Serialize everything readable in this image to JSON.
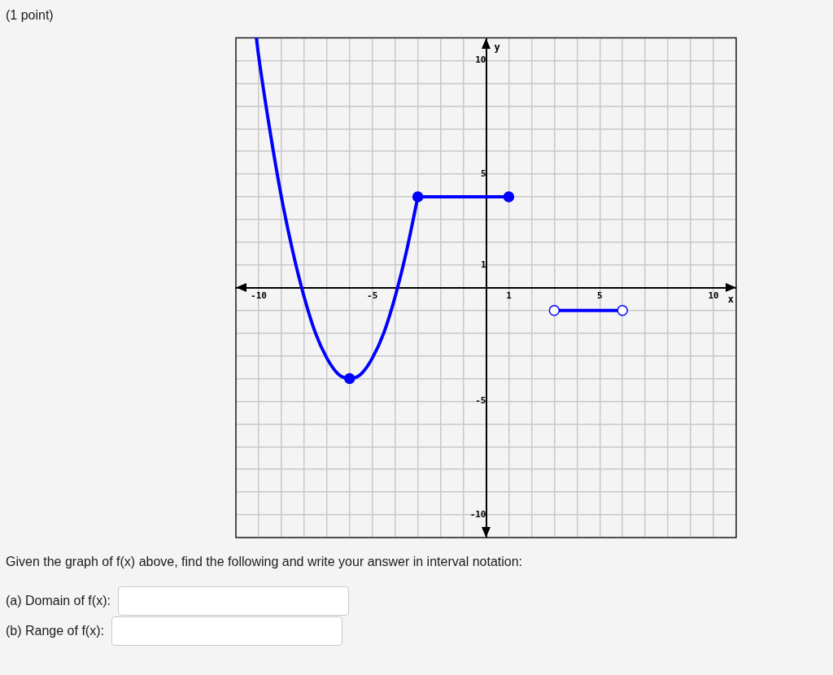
{
  "chart_data": {
    "type": "line",
    "title": "(1 point)",
    "xlabel": "x",
    "ylabel": "y",
    "annotations": [
      "Given the graph of f(x) above, find the following and write your answer in interval notation:",
      "(a) Domain of f(x):",
      "(b) Range of f(x):"
    ],
    "series": [
      {
        "color": "#0000ff",
        "x": [
          -10.1,
          -10,
          -9.5,
          -9,
          -8.5,
          -8,
          -7.5,
          -7,
          -6.5,
          -6,
          -5.5,
          -5,
          -4.5,
          -4,
          -3.5,
          -3
        ],
        "values": [
          11,
          10.2,
          6.9,
          4,
          1.6,
          -0.4,
          -2,
          -3.1,
          -3.8,
          -4,
          -3.8,
          -3.1,
          -2,
          -0.4,
          1.6,
          4
        ]
      },
      {
        "color": "#0000ff",
        "x": [
          -3,
          1
        ],
        "values": [
          4,
          4
        ]
      },
      {
        "color": "#0000ff",
        "x": [
          3,
          6
        ],
        "values": [
          -1,
          -1
        ]
      },
      {
        "type": "scatter",
        "marker": "circle",
        "color": "#0000ff",
        "x": [
          -6,
          -3,
          1
        ],
        "values": [
          -4,
          4,
          4
        ]
      },
      {
        "type": "scatter",
        "marker": "circle",
        "color": "#0000ff",
        "colors": [
          "#ffffff",
          "#ffffff"
        ],
        "x": [
          3,
          6
        ],
        "values": [
          -1,
          -1
        ]
      }
    ],
    "xlim": [
      -11,
      11
    ],
    "ylim": [
      -11,
      11
    ],
    "xticks": [
      {
        "value": -11,
        "label": null
      },
      -10,
      {
        "value": -9,
        "label": null
      },
      {
        "value": -8,
        "label": null
      },
      {
        "value": -7,
        "label": null
      },
      {
        "value": -6,
        "label": null
      },
      -5,
      {
        "value": -4,
        "label": null
      },
      {
        "value": -3,
        "label": null
      },
      {
        "value": -2,
        "label": null
      },
      {
        "value": -1,
        "label": null
      },
      {
        "value": 0,
        "label": null
      },
      1,
      {
        "value": 2,
        "label": null
      },
      {
        "value": 3,
        "label": null
      },
      {
        "value": 4,
        "label": null
      },
      5,
      {
        "value": 6,
        "label": null
      },
      {
        "value": 7,
        "label": null
      },
      {
        "value": 8,
        "label": null
      },
      {
        "value": 9,
        "label": null
      },
      10,
      {
        "value": 11,
        "label": null
      }
    ],
    "yticks": [
      {
        "value": -11,
        "label": null
      },
      -10,
      {
        "value": -9,
        "label": null
      },
      {
        "value": -8,
        "label": null
      },
      {
        "value": -7,
        "label": null
      },
      {
        "value": -6,
        "label": null
      },
      -5,
      {
        "value": -4,
        "label": null
      },
      {
        "value": -3,
        "label": null
      },
      {
        "value": -2,
        "label": null
      },
      {
        "value": -1,
        "label": null
      },
      {
        "value": 0,
        "label": null
      },
      1,
      {
        "value": 2,
        "label": null
      },
      {
        "value": 3,
        "label": null
      },
      {
        "value": 4,
        "label": null
      },
      5,
      {
        "value": 6,
        "label": null
      },
      {
        "value": 7,
        "label": null
      },
      {
        "value": 8,
        "label": null
      },
      {
        "value": 9,
        "label": null
      },
      10,
      {
        "value": 11,
        "label": null
      }
    ],
    "grid": true
  }
}
